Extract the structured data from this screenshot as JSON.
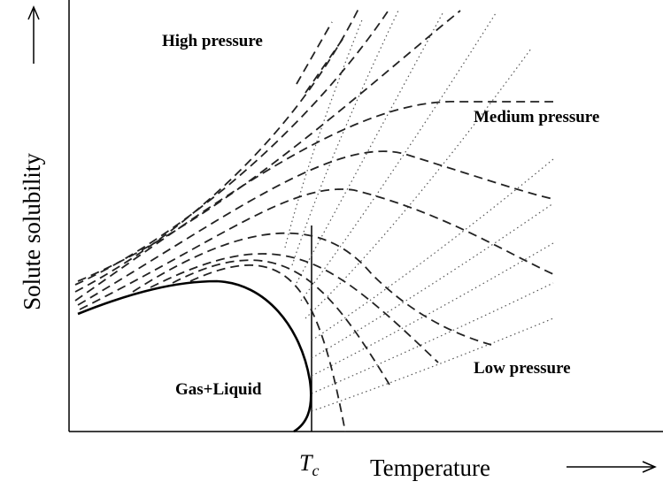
{
  "y_axis_label": "Solute solubility",
  "x_axis_label": "Temperature",
  "critical_temperature": {
    "symbol": "T",
    "subscript": "c"
  },
  "labels": {
    "high": "High pressure",
    "medium": "Medium pressure",
    "low": "Low pressure",
    "two_phase": "Gas+Liquid"
  }
}
